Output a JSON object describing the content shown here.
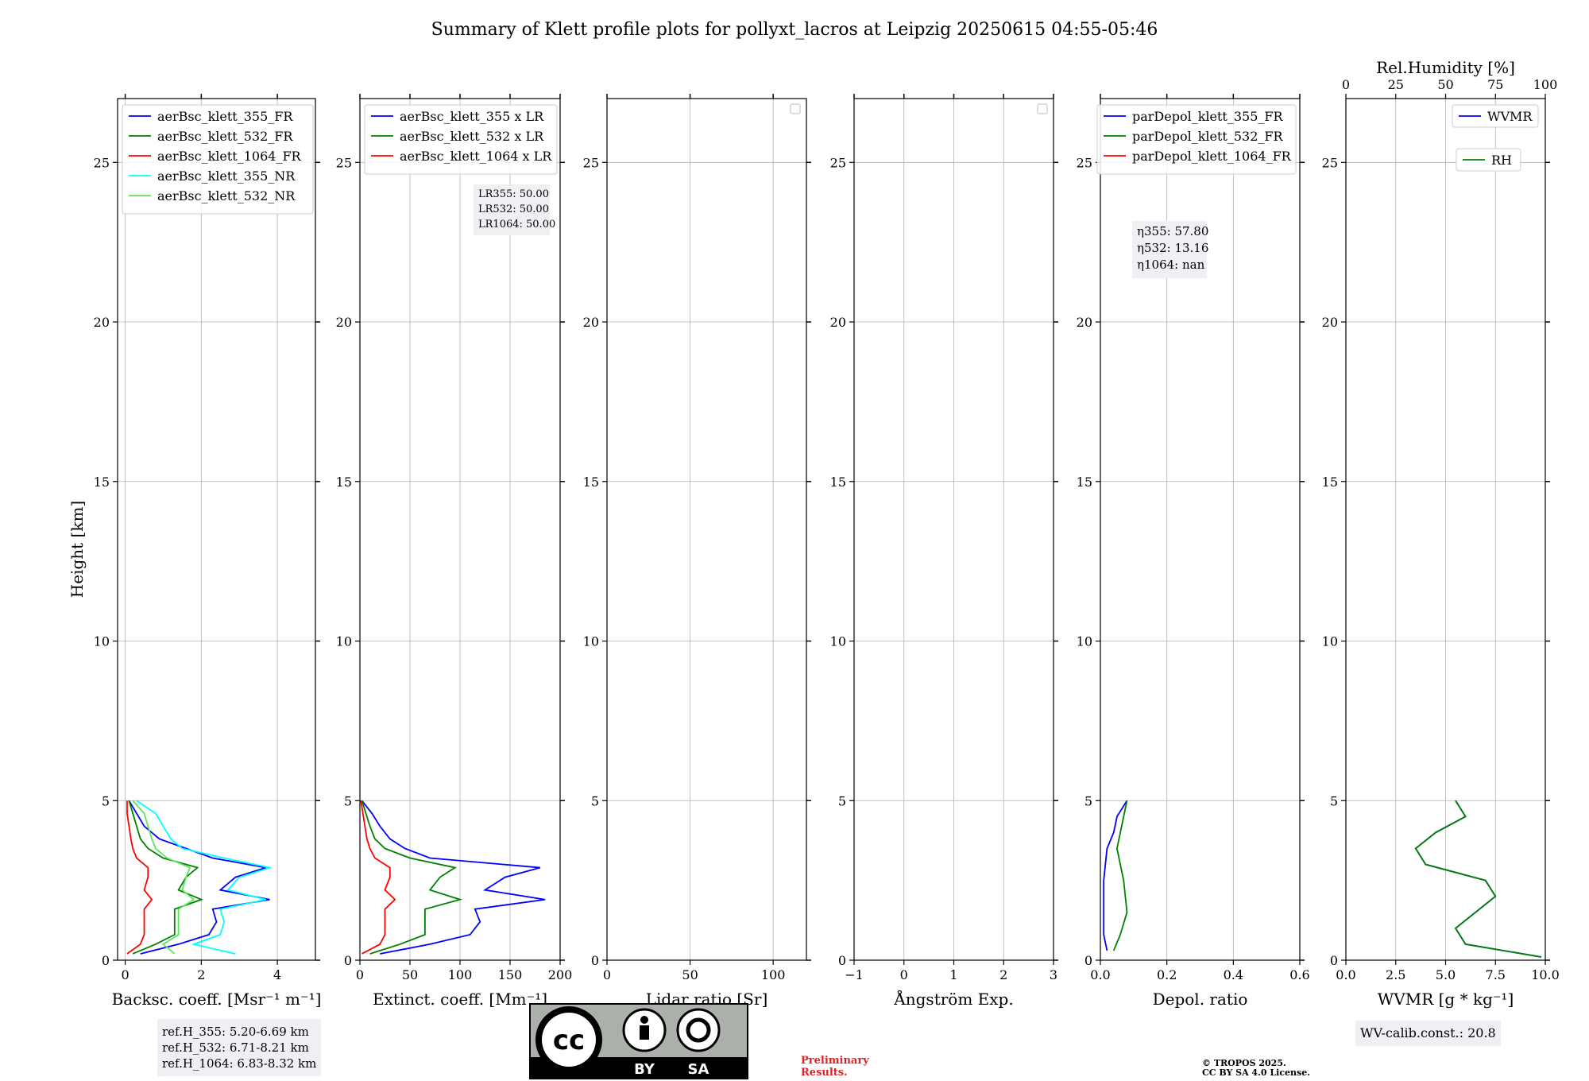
{
  "title": "Summary of Klett profile plots for pollyxt_lacros at Leipzig 20250615 04:55-05:46",
  "colors": {
    "blue": "#0000ff",
    "green": "#008000",
    "red": "#ff0000",
    "cyan": "#00ffff",
    "lightgreen": "#5ce65c"
  },
  "chart_data": [
    {
      "type": "line",
      "ylabel": "Height [km]",
      "xlabel": "Backsc. coeff. [Msr⁻¹ m⁻¹]",
      "xlim": [
        -0.2,
        5
      ],
      "ylim": [
        0,
        27
      ],
      "xticks": [
        0,
        2,
        4
      ],
      "yticks": [
        0,
        5,
        10,
        15,
        20,
        25
      ],
      "grid": true,
      "legend_position": "top-right",
      "series": [
        {
          "name": "aerBsc_klett_355_FR",
          "color": "#0000ff",
          "y": [
            0.2,
            0.5,
            0.8,
            1.2,
            1.6,
            1.9,
            2.2,
            2.6,
            2.9,
            3.2,
            3.5,
            3.8,
            4.2,
            4.6,
            5.0
          ],
          "x": [
            0.4,
            1.4,
            2.2,
            2.4,
            2.3,
            3.8,
            2.5,
            2.9,
            3.7,
            2.3,
            1.6,
            0.9,
            0.5,
            0.3,
            0.1
          ]
        },
        {
          "name": "aerBsc_klett_532_FR",
          "color": "#008000",
          "y": [
            0.2,
            0.5,
            0.8,
            1.2,
            1.6,
            1.9,
            2.2,
            2.6,
            2.9,
            3.2,
            3.5,
            3.8,
            4.2,
            4.6,
            5.0
          ],
          "x": [
            0.2,
            0.8,
            1.3,
            1.3,
            1.3,
            2.0,
            1.4,
            1.6,
            1.9,
            1.0,
            0.6,
            0.4,
            0.3,
            0.2,
            0.1
          ]
        },
        {
          "name": "aerBsc_klett_1064_FR",
          "color": "#ff0000",
          "y": [
            0.2,
            0.5,
            0.8,
            1.2,
            1.6,
            1.9,
            2.2,
            2.6,
            2.9,
            3.2,
            3.5,
            3.8,
            4.2,
            4.6,
            5.0
          ],
          "x": [
            0.05,
            0.4,
            0.5,
            0.5,
            0.5,
            0.7,
            0.5,
            0.6,
            0.6,
            0.3,
            0.2,
            0.15,
            0.1,
            0.05,
            0.05
          ]
        },
        {
          "name": "aerBsc_klett_355_NR",
          "color": "#00ffff",
          "y": [
            0.2,
            0.5,
            0.8,
            1.2,
            1.6,
            1.9,
            2.2,
            2.6,
            2.9,
            3.2,
            3.5,
            3.8,
            4.2,
            4.6,
            5.0
          ],
          "x": [
            2.9,
            1.8,
            2.5,
            2.6,
            2.5,
            3.7,
            2.7,
            3.0,
            3.8,
            2.6,
            1.5,
            1.2,
            1.0,
            0.8,
            0.3
          ]
        },
        {
          "name": "aerBsc_klett_532_NR",
          "color": "#5ce65c",
          "y": [
            0.2,
            0.5,
            0.8,
            1.2,
            1.6,
            1.9,
            2.2,
            2.6,
            2.9,
            3.2,
            3.5,
            3.8,
            4.2,
            4.6,
            5.0
          ],
          "x": [
            1.3,
            1.0,
            1.4,
            1.4,
            1.4,
            1.8,
            1.5,
            1.6,
            1.7,
            1.1,
            0.8,
            0.7,
            0.6,
            0.5,
            0.2
          ]
        }
      ]
    },
    {
      "type": "line",
      "xlabel": "Extinct. coeff. [Mm⁻¹]",
      "xlim": [
        0,
        200
      ],
      "ylim": [
        0,
        27
      ],
      "xticks": [
        0,
        50,
        100,
        150,
        200
      ],
      "yticks": [
        0,
        5,
        10,
        15,
        20,
        25
      ],
      "grid": true,
      "legend_position": "top-right",
      "annotation": [
        "LR355: 50.00",
        "LR532: 50.00",
        "LR1064: 50.00"
      ],
      "series": [
        {
          "name": "aerBsc_klett_355 x LR",
          "color": "#0000ff",
          "y": [
            0.2,
            0.5,
            0.8,
            1.2,
            1.6,
            1.9,
            2.2,
            2.6,
            2.9,
            3.2,
            3.5,
            3.8,
            4.2,
            4.6,
            5.0
          ],
          "x": [
            20,
            70,
            110,
            120,
            115,
            185,
            125,
            145,
            180,
            70,
            45,
            30,
            20,
            12,
            2
          ]
        },
        {
          "name": "aerBsc_klett_532 x LR",
          "color": "#008000",
          "y": [
            0.2,
            0.5,
            0.8,
            1.2,
            1.6,
            1.9,
            2.2,
            2.6,
            2.9,
            3.2,
            3.5,
            3.8,
            4.2,
            4.6,
            5.0
          ],
          "x": [
            10,
            40,
            65,
            65,
            65,
            100,
            70,
            80,
            95,
            50,
            25,
            15,
            10,
            6,
            2
          ]
        },
        {
          "name": "aerBsc_klett_1064 x LR",
          "color": "#ff0000",
          "y": [
            0.2,
            0.5,
            0.8,
            1.2,
            1.6,
            1.9,
            2.2,
            2.6,
            2.9,
            3.2,
            3.5,
            3.8,
            4.2,
            4.6,
            5.0
          ],
          "x": [
            2,
            20,
            25,
            25,
            25,
            35,
            25,
            30,
            30,
            15,
            10,
            7,
            5,
            3,
            1
          ]
        }
      ]
    },
    {
      "type": "line",
      "xlabel": "Lidar ratio [Sr]",
      "xlim": [
        0,
        120
      ],
      "ylim": [
        0,
        27
      ],
      "xticks": [
        0,
        50,
        100
      ],
      "yticks": [
        0,
        5,
        10,
        15,
        20,
        25
      ],
      "grid": true,
      "series": []
    },
    {
      "type": "line",
      "xlabel": "Ångström Exp.",
      "xlim": [
        -1,
        3
      ],
      "ylim": [
        0,
        27
      ],
      "xticks": [
        -1,
        0,
        1,
        2,
        3
      ],
      "yticks": [
        0,
        5,
        10,
        15,
        20,
        25
      ],
      "grid": true,
      "series": []
    },
    {
      "type": "line",
      "xlabel": "Depol. ratio",
      "xlim": [
        0,
        0.6
      ],
      "ylim": [
        0,
        27
      ],
      "xticks": [
        0.0,
        0.2,
        0.4,
        0.6
      ],
      "yticks": [
        0,
        5,
        10,
        15,
        20,
        25
      ],
      "grid": true,
      "legend_position": "top-right",
      "annotation": [
        "η355: 57.80",
        "η532: 13.16",
        "η1064: nan"
      ],
      "series": [
        {
          "name": "parDepol_klett_355_FR",
          "color": "#0000ff",
          "y": [
            0.3,
            0.8,
            1.5,
            2.5,
            3.5,
            4.0,
            4.5,
            5.0
          ],
          "x": [
            0.02,
            0.01,
            0.01,
            0.01,
            0.02,
            0.04,
            0.05,
            0.08
          ]
        },
        {
          "name": "parDepol_klett_532_FR",
          "color": "#008000",
          "y": [
            0.3,
            0.8,
            1.5,
            2.5,
            3.5,
            4.0,
            4.5,
            5.0
          ],
          "x": [
            0.04,
            0.06,
            0.08,
            0.07,
            0.05,
            0.06,
            0.07,
            0.08
          ]
        },
        {
          "name": "parDepol_klett_1064_FR",
          "color": "#ff0000",
          "y": [],
          "x": []
        }
      ]
    },
    {
      "type": "line",
      "xlabel": "WVMR [g * kg⁻¹]",
      "x2label": "Rel.Humidity [%]",
      "xlim": [
        0,
        10
      ],
      "x2lim": [
        0,
        100
      ],
      "ylim": [
        0,
        27
      ],
      "xticks": [
        0.0,
        2.5,
        5.0,
        7.5,
        10.0
      ],
      "x2ticks": [
        0,
        25,
        50,
        75,
        100
      ],
      "yticks": [
        0,
        5,
        10,
        15,
        20,
        25
      ],
      "grid": true,
      "series": [
        {
          "name": "WVMR",
          "color": "#0000ff",
          "y": [
            0.1,
            0.5,
            1.0,
            1.5,
            2.0,
            2.5,
            3.0,
            3.5,
            4.0,
            4.5,
            5.0
          ],
          "x": [
            9.8,
            6.0,
            5.5,
            6.5,
            7.5,
            7.0,
            4.0,
            3.5,
            4.5,
            6.0,
            5.5
          ]
        },
        {
          "name": "RH",
          "color": "#008000",
          "y": [
            0.1,
            0.5,
            1.0,
            1.5,
            2.0,
            2.5,
            3.0,
            3.5,
            4.0,
            4.5,
            5.0
          ],
          "x": [
            98,
            60,
            55,
            65,
            75,
            70,
            40,
            35,
            45,
            60,
            55
          ]
        }
      ]
    }
  ],
  "footer": {
    "ref_h": [
      "ref.H_355: 5.20-6.69 km",
      "ref.H_532: 6.71-8.21 km",
      "ref.H_1064: 6.83-8.32 km"
    ],
    "preliminary": [
      "Preliminary",
      "Results."
    ],
    "copyright": [
      "© TROPOS 2025.",
      "CC BY SA 4.0 License."
    ],
    "wv_calib": "WV-calib.const.: 20.8",
    "cc_logo": {
      "cc": "cc",
      "by": "BY",
      "sa": "SA"
    }
  }
}
